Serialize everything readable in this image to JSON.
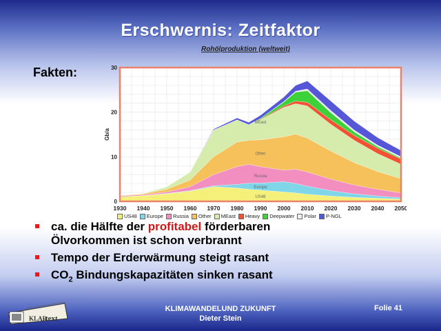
{
  "slide": {
    "title": "Erschwernis: Zeitfaktor",
    "facts_label": "Fakten:"
  },
  "chart_data": {
    "type": "area",
    "title": "Rohölproduktion (weltweit)",
    "ylabel": "Gb/a",
    "xlabel": "",
    "xlim": [
      1930,
      2050
    ],
    "ylim": [
      0,
      30
    ],
    "yticks": [
      0,
      10,
      20,
      30
    ],
    "x": [
      1930,
      1940,
      1950,
      1960,
      1970,
      1980,
      1985,
      1990,
      2000,
      2005,
      2010,
      2020,
      2030,
      2040,
      2050
    ],
    "series": [
      {
        "name": "US48",
        "color": "#f5f07a",
        "values": [
          1.0,
          1.3,
          1.7,
          2.3,
          3.3,
          3.0,
          2.7,
          2.5,
          2.1,
          1.9,
          1.6,
          1.2,
          0.9,
          0.7,
          0.5
        ]
      },
      {
        "name": "Europe",
        "color": "#7ed6e8",
        "values": [
          0.0,
          0.0,
          0.1,
          0.1,
          0.2,
          0.8,
          1.4,
          1.6,
          2.3,
          2.1,
          1.8,
          1.2,
          0.8,
          0.5,
          0.3
        ]
      },
      {
        "name": "Russia",
        "color": "#f28fc0",
        "values": [
          0.2,
          0.2,
          0.3,
          0.9,
          2.5,
          4.0,
          4.2,
          3.7,
          2.6,
          3.2,
          3.2,
          2.6,
          2.0,
          1.5,
          1.1
        ]
      },
      {
        "name": "Other",
        "color": "#f6c15a",
        "values": [
          0.1,
          0.2,
          0.6,
          1.5,
          4.0,
          5.5,
          5.4,
          6.0,
          7.5,
          7.9,
          7.6,
          6.3,
          5.0,
          4.0,
          3.2
        ]
      },
      {
        "name": "MEast",
        "color": "#d6ecad",
        "values": [
          0.0,
          0.1,
          0.6,
          1.8,
          6.0,
          5.0,
          3.5,
          4.5,
          6.6,
          6.8,
          7.2,
          6.0,
          5.0,
          4.0,
          3.2
        ]
      },
      {
        "name": "Heavy",
        "color": "#f25232",
        "values": [
          0.0,
          0.0,
          0.0,
          0.0,
          0.0,
          0.0,
          0.0,
          0.1,
          0.3,
          0.6,
          0.8,
          1.0,
          1.1,
          1.2,
          1.2
        ]
      },
      {
        "name": "Deepwater",
        "color": "#3ed23a",
        "values": [
          0.0,
          0.0,
          0.0,
          0.0,
          0.0,
          0.0,
          0.0,
          0.2,
          0.9,
          2.0,
          2.6,
          1.6,
          0.8,
          0.4,
          0.2
        ]
      },
      {
        "name": "Polar",
        "color": "#eeeeee",
        "values": [
          0.0,
          0.0,
          0.0,
          0.0,
          0.0,
          0.0,
          0.0,
          0.0,
          0.1,
          0.2,
          0.4,
          0.5,
          0.4,
          0.3,
          0.3
        ]
      },
      {
        "name": "P-NGL",
        "color": "#5656d8",
        "values": [
          0.0,
          0.0,
          0.0,
          0.0,
          0.2,
          0.4,
          0.5,
          0.7,
          1.0,
          1.3,
          1.8,
          2.1,
          2.0,
          1.7,
          1.4
        ]
      }
    ],
    "area_labels": [
      "MEast",
      "Other",
      "Russia",
      "Europe",
      "US48"
    ],
    "grid": true,
    "legend_position": "bottom"
  },
  "bullets": [
    {
      "pre": "ca. die Hälfte der ",
      "highlight": "profitabel",
      "post": " förderbaren",
      "line2": "Ölvorkommen ist schon verbrannt"
    },
    {
      "text": "Tempo der Erderwärmung steigt rasant"
    },
    {
      "text_pre": "CO",
      "sub": "2",
      "text_post": " Bindungskapazitäten sinken rasant"
    }
  ],
  "footer": {
    "line1": "KLIMAWANDELUND ZUKUNFT",
    "line2": "Dieter Stein",
    "slide_no": "Folie 41",
    "logo_text_a": "KLAR",
    "logo_text_b": "text"
  },
  "colors": {
    "chart_border": "#e8836a",
    "bullet_marker": "#e21e1e",
    "highlight": "#d01818"
  }
}
